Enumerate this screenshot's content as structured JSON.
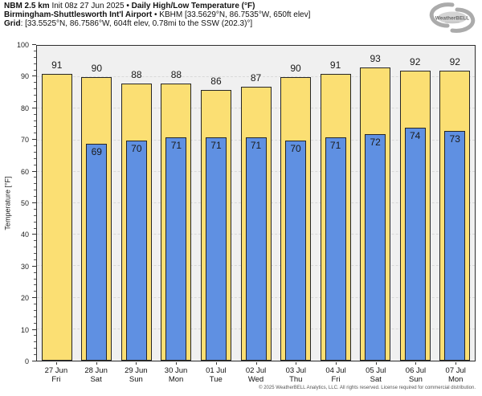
{
  "header": {
    "line1": [
      {
        "text": "NBM 2.5 km",
        "bold": true
      },
      {
        "text": " Init 08z 27 Jun 2025 ",
        "bold": false
      },
      {
        "text": "• Daily High/Low Temperature (°F)",
        "bold": true
      }
    ],
    "line2": [
      {
        "text": "Birmingham-Shuttlesworth Int'l Airport",
        "bold": true
      },
      {
        "text": " • KBHM [33.5629°N, 86.7535°W, 650ft elev]",
        "bold": false
      }
    ],
    "line3": [
      {
        "text": "Grid",
        "bold": true
      },
      {
        "text": ": [33.5525°N, 86.7586°W, 604ft elev, 0.78mi to the SSW (202.3)°]",
        "bold": false
      }
    ]
  },
  "logo": {
    "text": "WeatherBELL"
  },
  "chart_data": {
    "type": "bar",
    "title": "NBM 2.5 km Init 08z 27 Jun 2025 • Daily High/Low Temperature (°F)",
    "subtitle": "Birmingham-Shuttlesworth Int'l Airport • KBHM [33.5629°N, 86.7535°W, 650ft elev]",
    "ylabel": "Temperature [°F]",
    "ylim": [
      0,
      100
    ],
    "ytick_step": 10,
    "minor_tick_step": 2,
    "grid": true,
    "plot_bg": "#f0f0f0",
    "categories": [
      {
        "date": "27 Jun",
        "day": "Fri"
      },
      {
        "date": "28 Jun",
        "day": "Sat"
      },
      {
        "date": "29 Jun",
        "day": "Sun"
      },
      {
        "date": "30 Jun",
        "day": "Mon"
      },
      {
        "date": "01 Jul",
        "day": "Tue"
      },
      {
        "date": "02 Jul",
        "day": "Wed"
      },
      {
        "date": "03 Jul",
        "day": "Thu"
      },
      {
        "date": "04 Jul",
        "day": "Fri"
      },
      {
        "date": "05 Jul",
        "day": "Sat"
      },
      {
        "date": "06 Jul",
        "day": "Sun"
      },
      {
        "date": "07 Jul",
        "day": "Mon"
      }
    ],
    "series": [
      {
        "name": "daily-high",
        "color": "#fbdf73",
        "values": [
          91,
          90,
          88,
          88,
          86,
          87,
          90,
          91,
          93,
          92,
          92
        ]
      },
      {
        "name": "daily-low",
        "color": "#5f90e2",
        "values": [
          null,
          69,
          70,
          71,
          71,
          71,
          70,
          71,
          72,
          74,
          73
        ]
      }
    ]
  },
  "footer": "© 2025 WeatherBELL Analytics, LLC. All rights reserved. License required for commercial distribution."
}
